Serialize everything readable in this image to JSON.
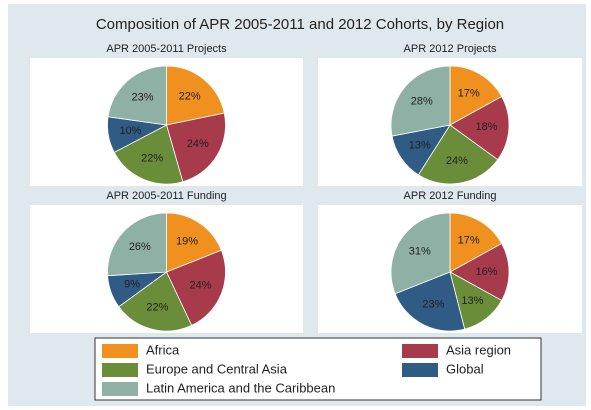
{
  "title": "Composition of APR 2005-2011 and 2012 Cohorts, by Region",
  "chart_data": [
    {
      "type": "pie",
      "title": "APR 2005-2011 Projects",
      "categories": [
        "Africa",
        "Asia region",
        "Europe and Central Asia",
        "Global",
        "Latin America and the Caribbean"
      ],
      "values": [
        22,
        24,
        22,
        10,
        23
      ],
      "value_labels": [
        "22%",
        "24%",
        "22%",
        "10%",
        "23%"
      ],
      "colors": [
        "#f0901e",
        "#a73b4c",
        "#6a8d3a",
        "#2f5b84",
        "#8fb0a4"
      ]
    },
    {
      "type": "pie",
      "title": "APR 2012 Projects",
      "categories": [
        "Africa",
        "Asia region",
        "Europe and Central Asia",
        "Global",
        "Latin America and the Caribbean"
      ],
      "values": [
        17,
        18,
        24,
        13,
        28
      ],
      "value_labels": [
        "17%",
        "18%",
        "24%",
        "13%",
        "28%"
      ],
      "colors": [
        "#f0901e",
        "#a73b4c",
        "#6a8d3a",
        "#2f5b84",
        "#8fb0a4"
      ]
    },
    {
      "type": "pie",
      "title": "APR 2005-2011 Funding",
      "categories": [
        "Africa",
        "Asia region",
        "Europe and Central Asia",
        "Global",
        "Latin America and the Caribbean"
      ],
      "values": [
        19,
        24,
        22,
        9,
        26
      ],
      "value_labels": [
        "19%",
        "24%",
        "22%",
        "9%",
        "26%"
      ],
      "colors": [
        "#f0901e",
        "#a73b4c",
        "#6a8d3a",
        "#2f5b84",
        "#8fb0a4"
      ]
    },
    {
      "type": "pie",
      "title": "APR 2012 Funding",
      "categories": [
        "Africa",
        "Asia region",
        "Europe and Central Asia",
        "Global",
        "Latin America and the Caribbean"
      ],
      "values": [
        17,
        16,
        13,
        23,
        31
      ],
      "value_labels": [
        "17%",
        "16%",
        "13%",
        "23%",
        "31%"
      ],
      "colors": [
        "#f0901e",
        "#a73b4c",
        "#6a8d3a",
        "#2f5b84",
        "#8fb0a4"
      ]
    }
  ]
}
